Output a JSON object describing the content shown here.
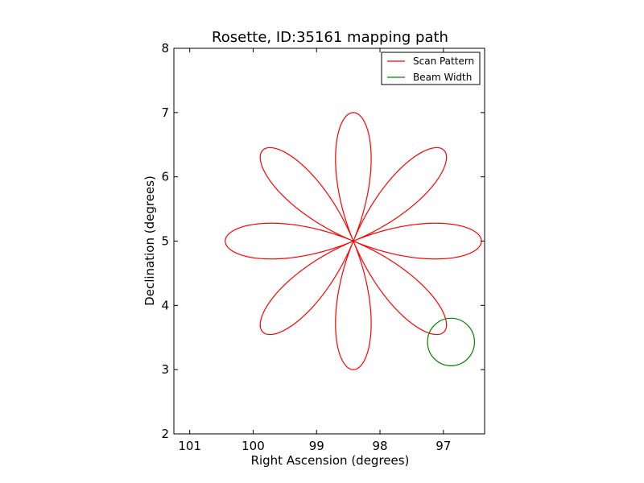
{
  "chart_data": {
    "type": "line",
    "title": "Rosette, ID:35161 mapping path",
    "xlabel": "Right Ascension (degrees)",
    "ylabel": "Declination (degrees)",
    "xlim": [
      101.25,
      96.35
    ],
    "ylim": [
      2,
      8
    ],
    "xticks": [
      101,
      100,
      99,
      98,
      97
    ],
    "yticks": [
      2,
      3,
      4,
      5,
      6,
      7,
      8
    ],
    "xtick_labels": [
      "101",
      "100",
      "99",
      "98",
      "97"
    ],
    "ytick_labels": [
      "2",
      "3",
      "4",
      "5",
      "6",
      "7",
      "8"
    ],
    "grid": false,
    "legend_position": "top-right",
    "series": [
      {
        "name": "Scan Pattern",
        "color": "#ff0000",
        "rosette": {
          "center_ra": 98.42,
          "center_dec": 5.0,
          "radius_ra": 2.02,
          "radius_dec": 2.0,
          "petals": 8,
          "samples": 1600
        }
      },
      {
        "name": "Beam Width",
        "color": "#008000",
        "circle": {
          "center_ra": 96.88,
          "center_dec": 3.43,
          "radius_ra": 0.37,
          "radius_dec": 0.37
        }
      }
    ]
  }
}
